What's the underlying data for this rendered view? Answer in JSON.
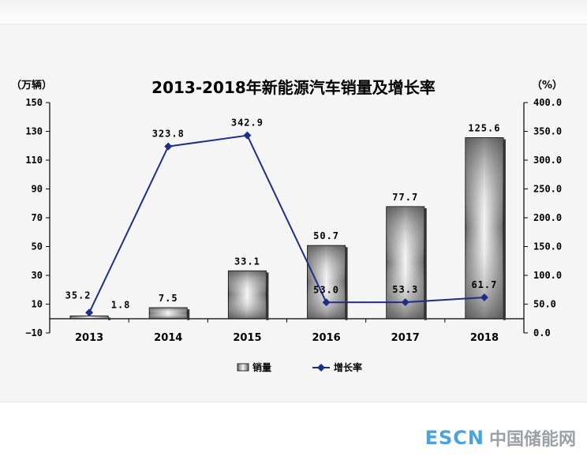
{
  "chart_data": {
    "type": "bar",
    "title": "2013-2018年新能源汽车销量及增长率",
    "categories": [
      "2013",
      "2014",
      "2015",
      "2016",
      "2017",
      "2018"
    ],
    "series": [
      {
        "name": "销量",
        "type": "bar",
        "axis": "left",
        "values": [
          1.8,
          7.5,
          33.1,
          50.7,
          77.7,
          125.6
        ]
      },
      {
        "name": "增长率",
        "type": "line",
        "axis": "right",
        "values": [
          35.2,
          323.8,
          342.9,
          53.0,
          53.3,
          61.7
        ]
      }
    ],
    "data_labels": {
      "bar": [
        "1.8",
        "7.5",
        "33.1",
        "50.7",
        "77.7",
        "125.6"
      ],
      "line": [
        "35.2",
        "323.8",
        "342.9",
        "53.0",
        "53.3",
        "61.7"
      ]
    },
    "left_axis": {
      "unit": "（万辆）",
      "ylim": [
        -10,
        150
      ],
      "ticks": [
        "150",
        "130",
        "110",
        "90",
        "70",
        "50",
        "30",
        "10",
        "−10"
      ]
    },
    "right_axis": {
      "unit": "（%）",
      "ylim": [
        0,
        400
      ],
      "ticks": [
        "400.0",
        "350.0",
        "300.0",
        "250.0",
        "200.0",
        "150.0",
        "100.0",
        "50.0",
        "0.0"
      ]
    },
    "grid": false,
    "legend": {
      "placement": "bottom",
      "items": [
        "销量",
        "增长率"
      ]
    },
    "colors": {
      "line": "#1f2d8a",
      "bar_dark": "#6e6e6e",
      "bar_light": "#f2f2f2",
      "axis": "#000000"
    }
  },
  "watermark": {
    "latin": "ESCN",
    "cjk": "中国储能网"
  }
}
